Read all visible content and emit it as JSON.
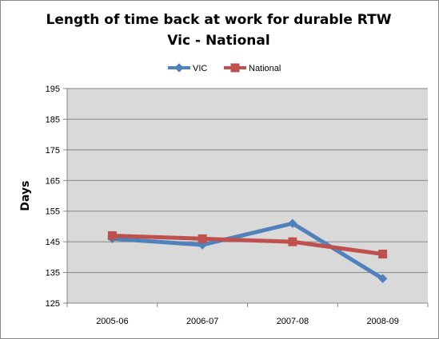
{
  "chart_data": {
    "type": "line",
    "title": [
      "Length of time back at work for durable RTW",
      "Vic - National"
    ],
    "xlabel": "",
    "ylabel": "Days",
    "categories": [
      "2005-06",
      "2006-07",
      "2007-08",
      "2008-09"
    ],
    "ylim": [
      125,
      195
    ],
    "yticks": [
      125,
      135,
      145,
      155,
      165,
      175,
      185,
      195
    ],
    "grid": true,
    "legend_position": "top",
    "plot_background": "#d9d9d9",
    "series": [
      {
        "name": "VIC",
        "values": [
          146,
          144,
          151,
          133
        ],
        "color": "#4f81bd",
        "marker": "diamond"
      },
      {
        "name": "National",
        "values": [
          147,
          146,
          145,
          141
        ],
        "color": "#c0504d",
        "marker": "square"
      }
    ]
  }
}
